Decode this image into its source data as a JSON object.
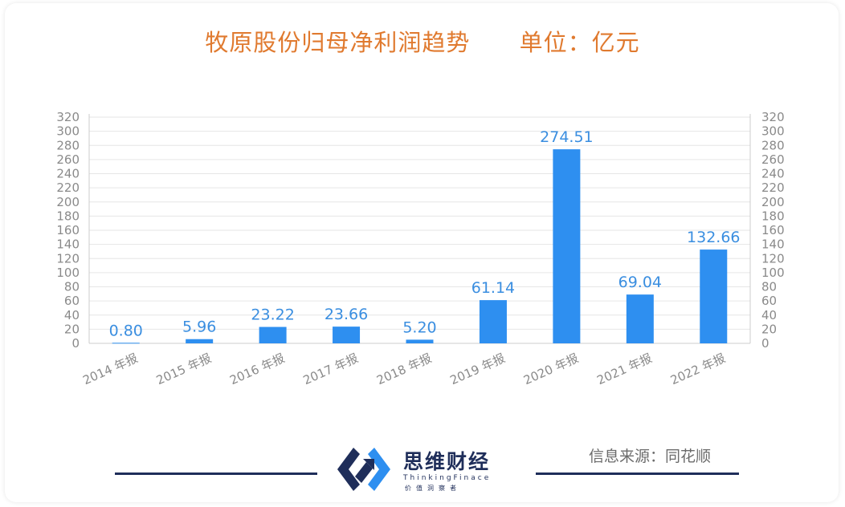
{
  "title": "牧原股份归母净利润趋势      单位：亿元",
  "chart_data": {
    "type": "bar",
    "categories": [
      "2014 年报",
      "2015 年报",
      "2016 年报",
      "2017 年报",
      "2018 年报",
      "2019 年报",
      "2020 年报",
      "2021 年报",
      "2022 年报"
    ],
    "values": [
      0.8,
      5.96,
      23.22,
      23.66,
      5.2,
      61.14,
      274.51,
      69.04,
      132.66
    ],
    "data_labels": [
      "0.80",
      "5.96",
      "23.22",
      "23.66",
      "5.20",
      "61.14",
      "274.51",
      "69.04",
      "132.66"
    ],
    "ylim": [
      0,
      320
    ],
    "yticks": [
      0,
      20,
      40,
      60,
      80,
      100,
      120,
      140,
      160,
      180,
      200,
      220,
      240,
      260,
      280,
      300,
      320
    ],
    "dual_y_axis": true,
    "grid": true,
    "bar_color": "#2e8ff0",
    "label_color": "#3a8ee0"
  },
  "footer": {
    "brand_name": "思维财经",
    "brand_en": "ThinkingFinace",
    "brand_slogan": "价值洞察者",
    "source": "信息来源：同花顺"
  },
  "colors": {
    "title": "#e07a2f",
    "brand": "#1f2e5a",
    "grid": "#e6e6e6"
  }
}
